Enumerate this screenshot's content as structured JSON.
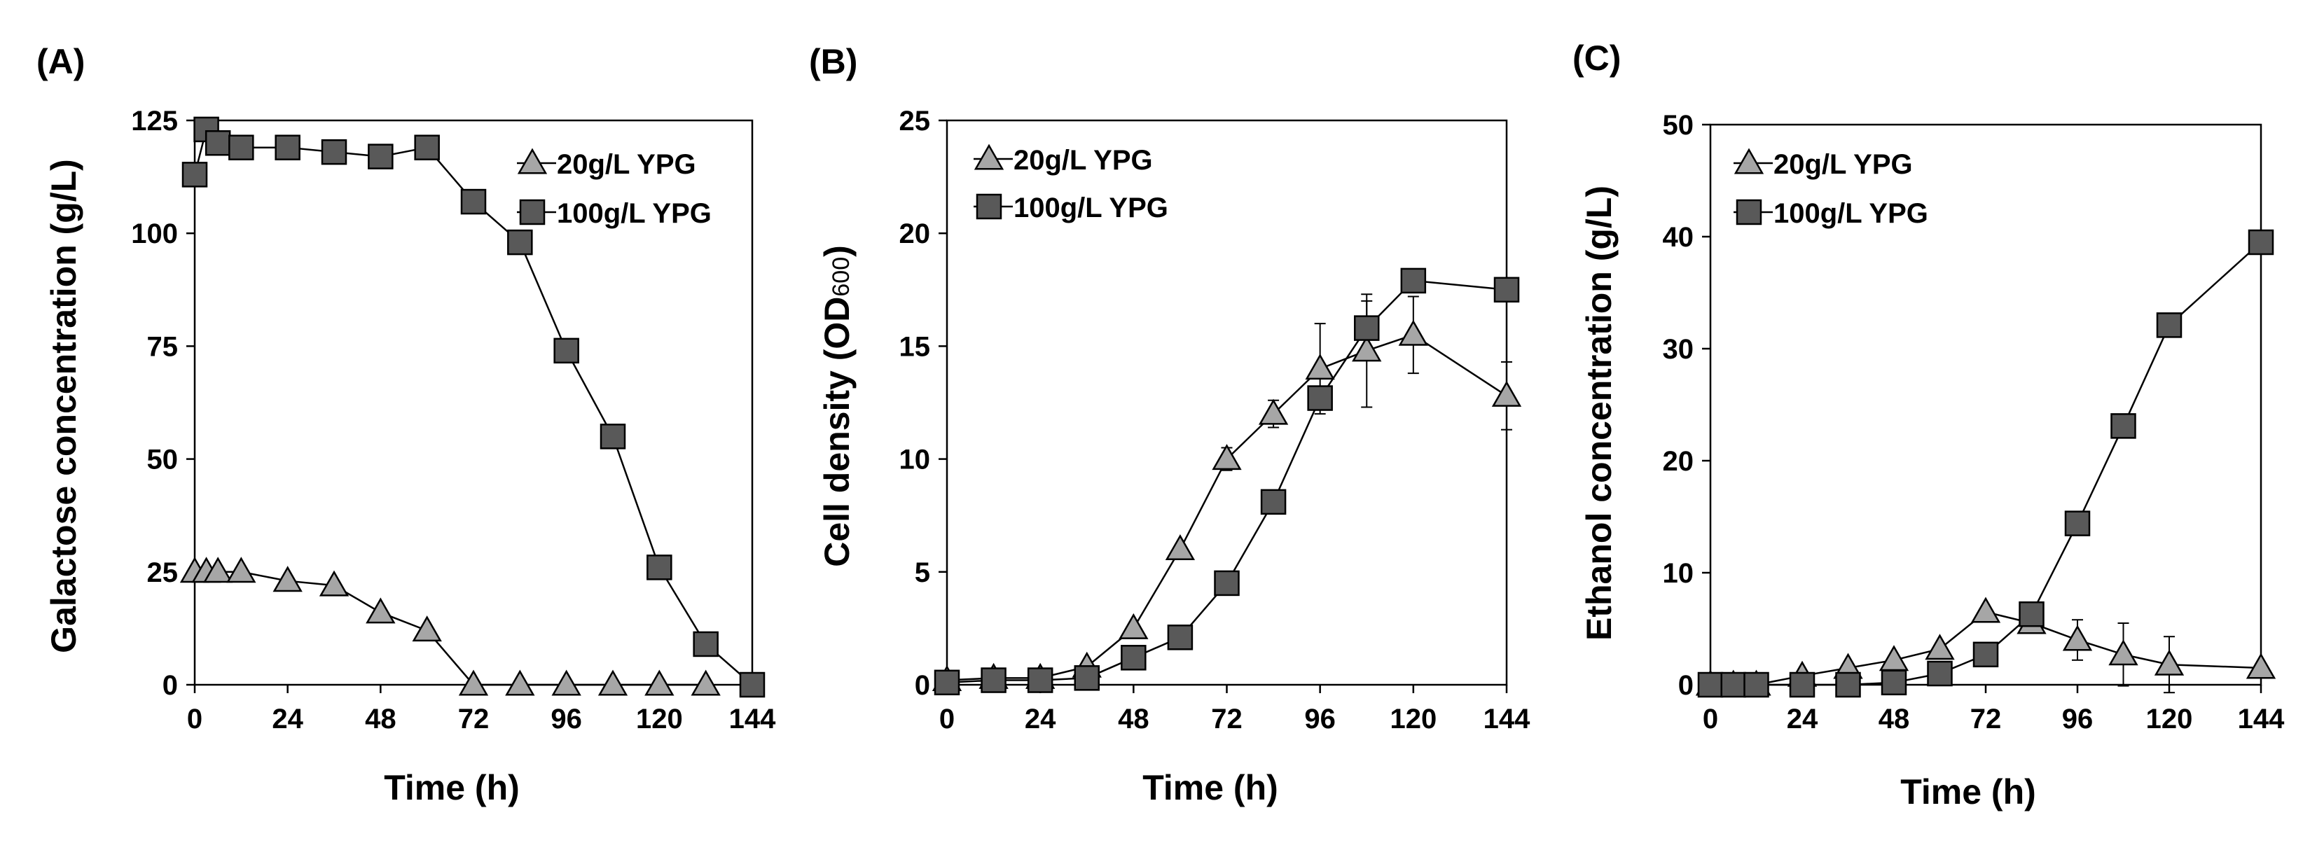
{
  "colors": {
    "triangle_fill": "#a6a6a6",
    "square_fill": "#595959",
    "outline": "#000000"
  },
  "chart_data": [
    {
      "type": "line",
      "panel_label": "(A)",
      "title": "",
      "xlabel": "Time (h)",
      "ylabel": "Galactose concentration (g/L)",
      "xlim": [
        0,
        144
      ],
      "ylim": [
        0,
        125
      ],
      "xticks": [
        0,
        24,
        48,
        72,
        96,
        120,
        144
      ],
      "yticks": [
        0,
        25,
        50,
        75,
        100,
        125
      ],
      "legend_position": "top-right",
      "series": [
        {
          "name": "20g/L YPG",
          "marker": "triangle",
          "x": [
            0,
            3,
            6,
            12,
            24,
            36,
            48,
            60,
            72,
            84,
            96,
            108,
            120,
            132
          ],
          "y": [
            25,
            25,
            25,
            25,
            23,
            22,
            16,
            12,
            0,
            0,
            0,
            0,
            0,
            0
          ]
        },
        {
          "name": "100g/L YPG",
          "marker": "square",
          "x": [
            0,
            3,
            6,
            12,
            24,
            36,
            48,
            60,
            72,
            84,
            96,
            108,
            120,
            132,
            144
          ],
          "y": [
            113,
            123,
            120,
            119,
            119,
            118,
            117,
            119,
            107,
            98,
            74,
            55,
            26,
            9,
            0
          ]
        }
      ]
    },
    {
      "type": "line",
      "panel_label": "(B)",
      "title": "",
      "xlabel": "Time (h)",
      "ylabel": "Cell density (OD",
      "ylabel_sub": "600",
      "ylabel_end": ")",
      "xlim": [
        0,
        144
      ],
      "ylim": [
        0,
        25
      ],
      "xticks": [
        0,
        24,
        48,
        72,
        96,
        120,
        144
      ],
      "yticks": [
        0,
        5,
        10,
        15,
        20,
        25
      ],
      "legend_position": "top-left",
      "series": [
        {
          "name": "20g/L YPG",
          "marker": "triangle",
          "x": [
            0,
            12,
            24,
            36,
            48,
            60,
            72,
            84,
            96,
            108,
            120,
            144
          ],
          "y": [
            0.2,
            0.3,
            0.3,
            0.8,
            2.5,
            6.0,
            10.0,
            12.0,
            14.0,
            14.8,
            15.5,
            12.8
          ],
          "err": [
            0,
            0,
            0,
            0,
            0,
            0,
            0.5,
            0.6,
            2.0,
            2.5,
            1.7,
            1.5
          ]
        },
        {
          "name": "100g/L YPG",
          "marker": "square",
          "x": [
            0,
            12,
            24,
            36,
            48,
            60,
            72,
            84,
            96,
            108,
            120,
            144
          ],
          "y": [
            0.1,
            0.2,
            0.2,
            0.3,
            1.2,
            2.1,
            4.5,
            8.1,
            12.7,
            15.8,
            17.9,
            17.5
          ],
          "err": [
            0,
            0,
            0,
            0,
            0,
            0,
            0,
            0,
            0,
            1.2,
            0,
            0
          ]
        }
      ]
    },
    {
      "type": "line",
      "panel_label": "(C)",
      "title": "",
      "xlabel": "Time (h)",
      "ylabel": "Ethanol concentration (g/L)",
      "xlim": [
        0,
        144
      ],
      "ylim": [
        0,
        50
      ],
      "xticks": [
        0,
        24,
        48,
        72,
        96,
        120,
        144
      ],
      "yticks": [
        0,
        10,
        20,
        30,
        40,
        50
      ],
      "legend_position": "top-left",
      "series": [
        {
          "name": "20g/L YPG",
          "marker": "triangle",
          "x": [
            0,
            6,
            12,
            24,
            36,
            48,
            60,
            72,
            84,
            96,
            108,
            120,
            144
          ],
          "y": [
            0,
            0,
            0,
            0.8,
            1.5,
            2.2,
            3.2,
            6.5,
            5.5,
            4.0,
            2.7,
            1.8,
            1.5
          ],
          "err": [
            0,
            0,
            0,
            0,
            0,
            0,
            0,
            0,
            0,
            1.8,
            2.8,
            2.5,
            0
          ]
        },
        {
          "name": "100g/L YPG",
          "marker": "square",
          "x": [
            0,
            6,
            12,
            24,
            36,
            48,
            60,
            72,
            84,
            96,
            108,
            120,
            144
          ],
          "y": [
            0,
            0,
            0,
            0,
            0,
            0.2,
            1.0,
            2.7,
            6.3,
            14.4,
            23.1,
            32.1,
            39.5
          ],
          "err": [
            0,
            0,
            0,
            0,
            0,
            0,
            0,
            0,
            0,
            0,
            0,
            0,
            0
          ]
        }
      ]
    }
  ]
}
